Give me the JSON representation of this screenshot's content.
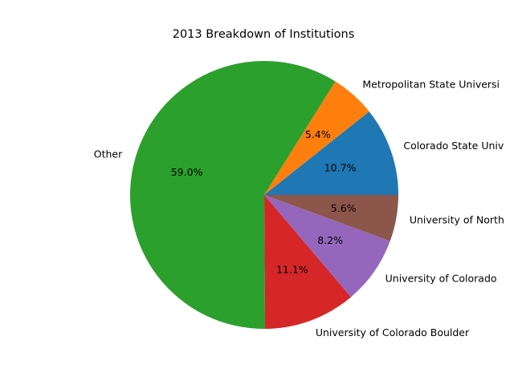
{
  "chart_data": {
    "type": "pie",
    "title": "2013 Breakdown of Institutions",
    "start_angle_deg": 0,
    "direction": "counterclockwise",
    "slices": [
      {
        "label": "Colorado State Univ",
        "pct_label": "10.7%",
        "value": 10.7,
        "color": "#1f77b4"
      },
      {
        "label": "Metropolitan State Universi",
        "pct_label": "5.4%",
        "value": 5.4,
        "color": "#ff7f0e"
      },
      {
        "label": "Other",
        "pct_label": "59.0%",
        "value": 59.0,
        "color": "#2ca02c"
      },
      {
        "label": "University of Colorado Boulder",
        "pct_label": "11.1%",
        "value": 11.1,
        "color": "#d62728"
      },
      {
        "label": "University of Colorado",
        "pct_label": "8.2%",
        "value": 8.2,
        "color": "#9467bd"
      },
      {
        "label": "University of North",
        "pct_label": "5.6%",
        "value": 5.6,
        "color": "#8c564b"
      }
    ]
  }
}
